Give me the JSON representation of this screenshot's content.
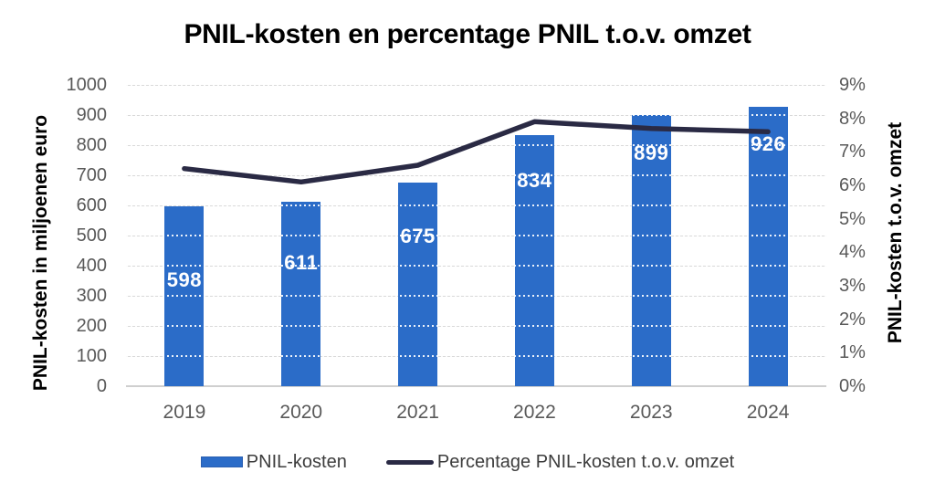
{
  "title": "PNIL-kosten en percentage PNIL t.o.v. omzet",
  "chart_data": {
    "type": "combo",
    "title": "PNIL-kosten en percentage PNIL t.o.v. omzet",
    "categories": [
      "2019",
      "2020",
      "2021",
      "2022",
      "2023",
      "2024"
    ],
    "series": [
      {
        "name": "PNIL-kosten",
        "type": "bar",
        "axis": "left",
        "values": [
          598,
          611,
          675,
          834,
          899,
          926
        ],
        "data_labels": [
          "598",
          "611",
          "675",
          "834",
          "899",
          "926"
        ],
        "color": "#2b6cc8"
      },
      {
        "name": "Percentage PNIL-kosten t.o.v. omzet",
        "type": "line",
        "axis": "right",
        "values": [
          6.5,
          6.1,
          6.6,
          7.9,
          7.7,
          7.6
        ],
        "unit": "%",
        "color": "#2a2a44"
      }
    ],
    "left_axis": {
      "label": "PNIL-kosten in miljoenen euro",
      "min": 0,
      "max": 1000,
      "step": 100,
      "ticks": [
        "0",
        "100",
        "200",
        "300",
        "400",
        "500",
        "600",
        "700",
        "800",
        "900",
        "1000"
      ]
    },
    "right_axis": {
      "label": "PNIL-kosten t.o.v. omzet",
      "min": 0,
      "max": 9,
      "step": 1,
      "suffix": "%",
      "ticks": [
        "0%",
        "1%",
        "2%",
        "3%",
        "4%",
        "5%",
        "6%",
        "7%",
        "8%",
        "9%"
      ]
    },
    "grid": true,
    "legend_position": "bottom",
    "legend": [
      {
        "label": "PNIL-kosten",
        "swatch": "bar"
      },
      {
        "label": "Percentage PNIL-kosten t.o.v. omzet",
        "swatch": "line"
      }
    ]
  },
  "colors": {
    "bar": "#2b6cc8",
    "line": "#2a2a44",
    "grid": "#d9d9d9",
    "tick_text": "#595959",
    "axis_title_text": "#000000",
    "bar_label_text": "#ffffff",
    "background": "#ffffff"
  }
}
